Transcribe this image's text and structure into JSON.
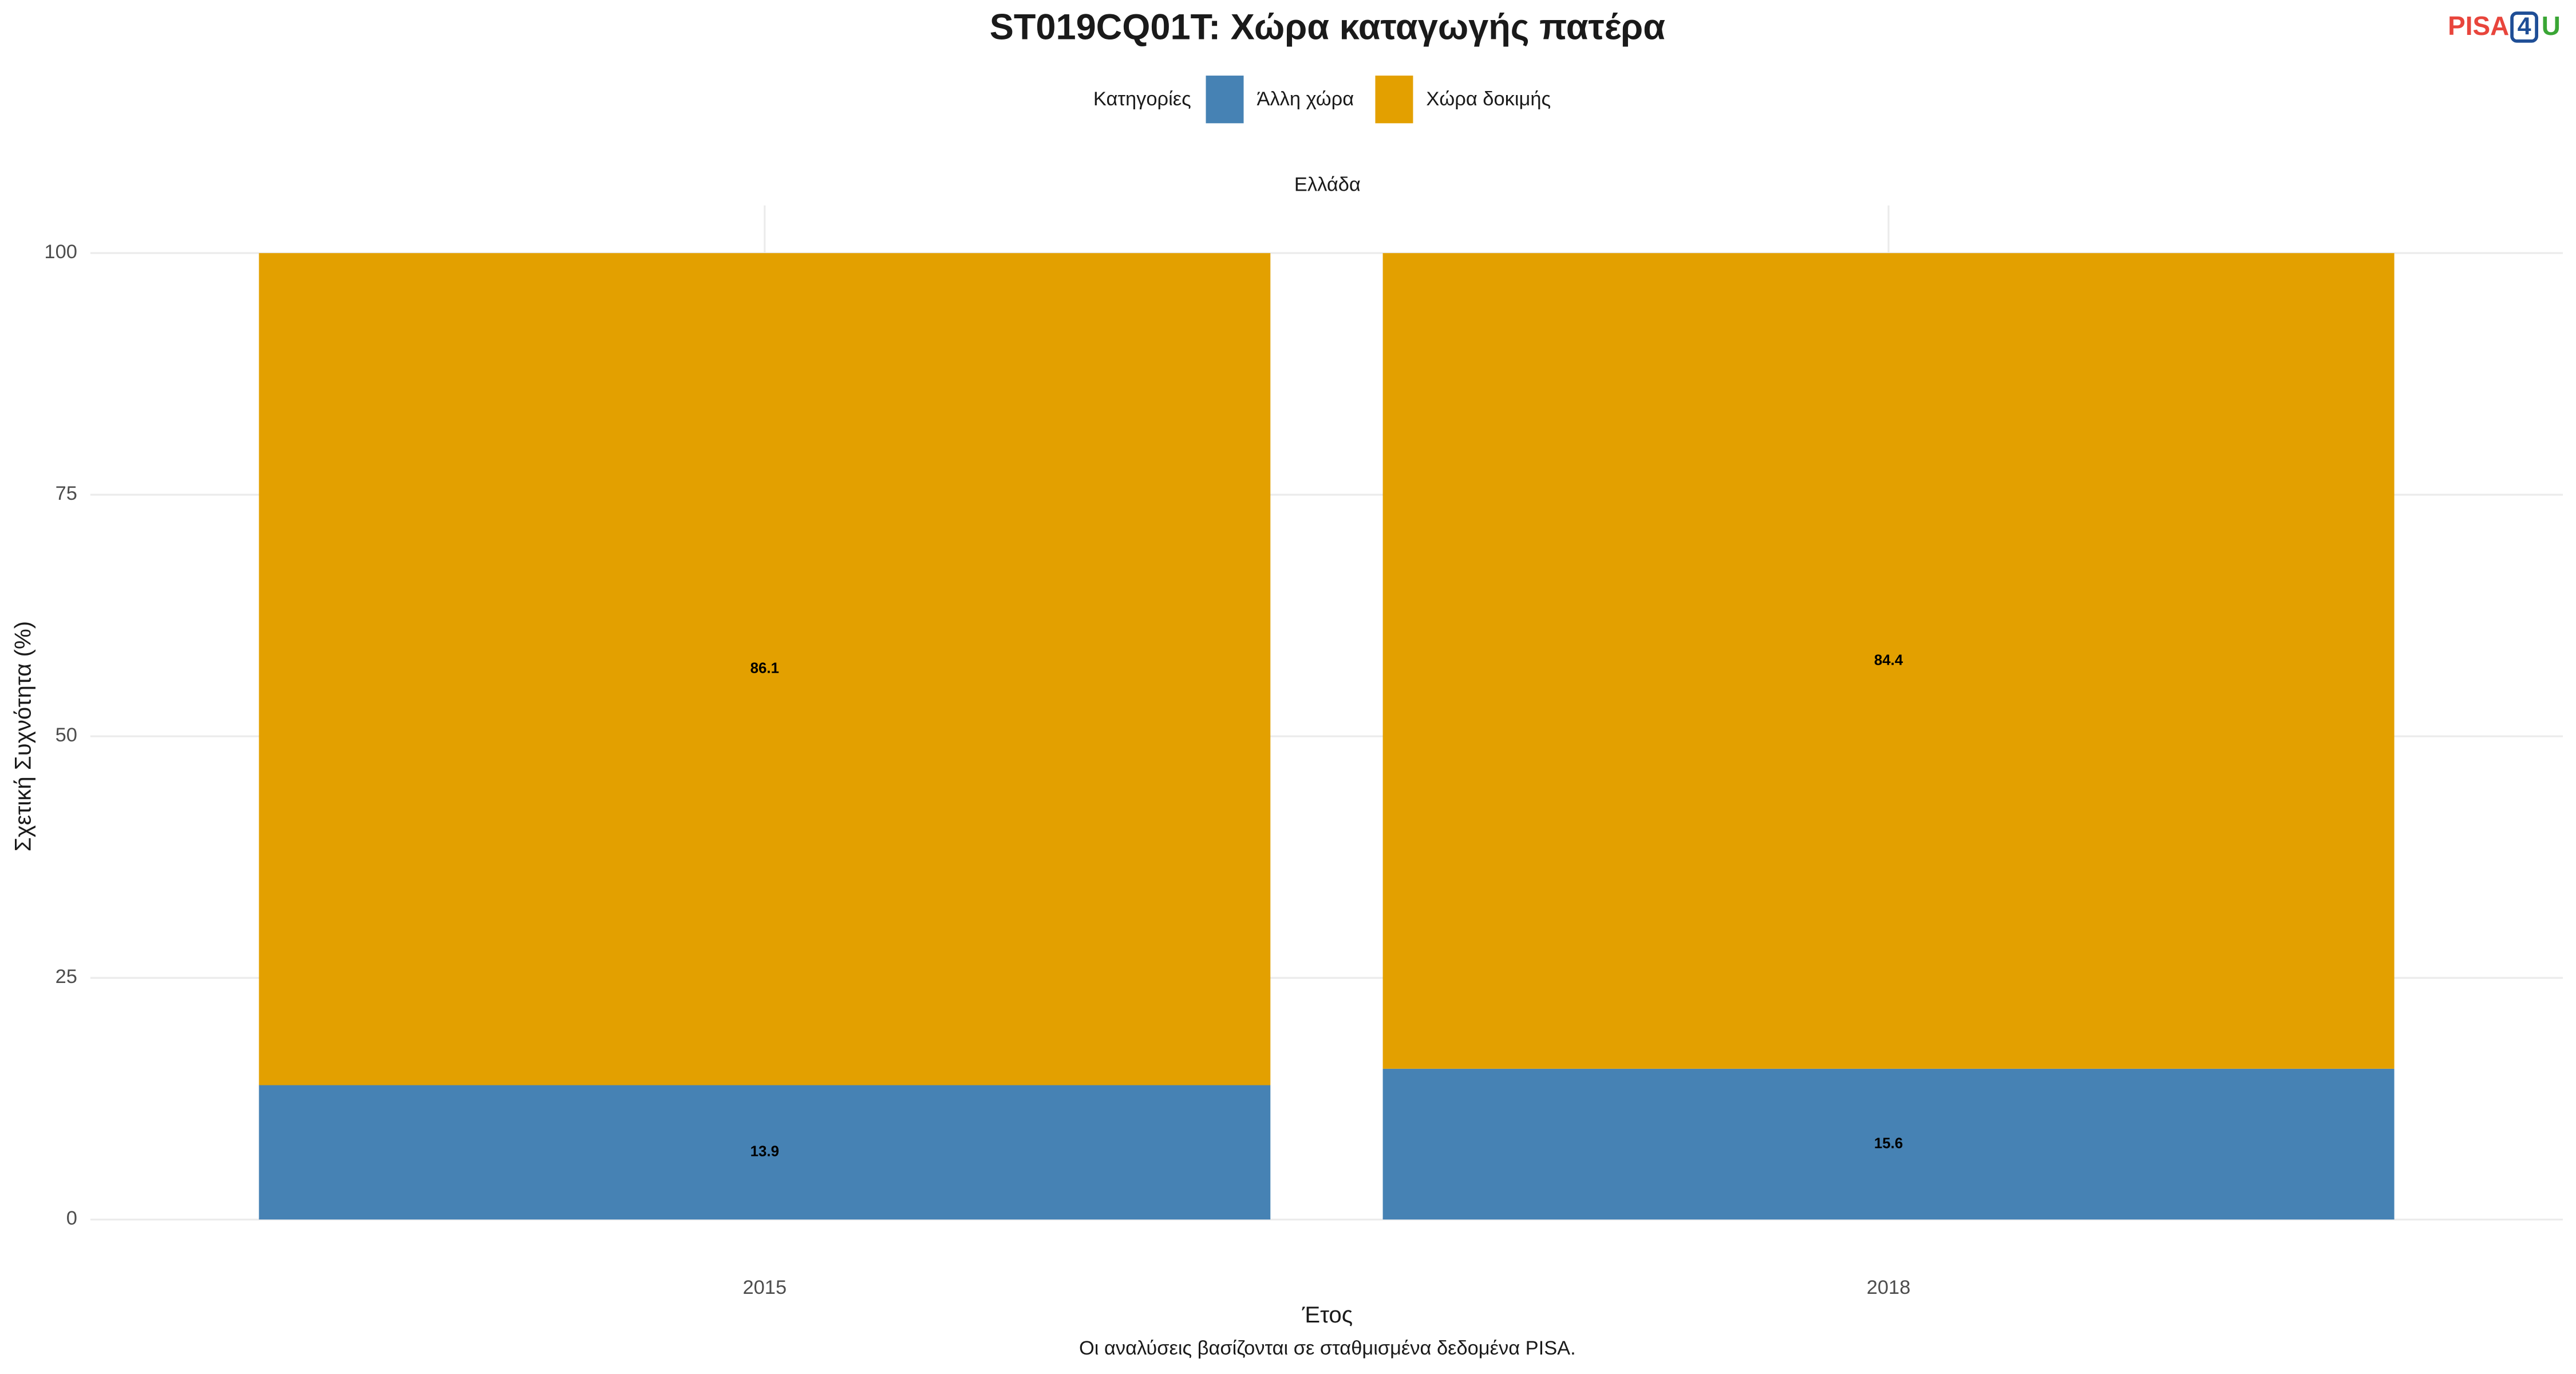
{
  "chart_data": {
    "type": "stacked_bar",
    "title": "ST019CQ01T: Χώρα καταγωγής πατέρα",
    "logo": [
      "PISA",
      "4",
      "U"
    ],
    "legend_title": "Κατηγορίες",
    "facet_label": "Ελλάδα",
    "categories": [
      "2015",
      "2018"
    ],
    "series": [
      {
        "name": "Άλλη χώρα",
        "color": "#4682b4",
        "values": [
          13.9,
          15.6
        ]
      },
      {
        "name": "Χώρα δοκιμής",
        "color": "#e3a000",
        "values": [
          86.1,
          84.4
        ]
      }
    ],
    "ylim": [
      0,
      100
    ],
    "yticks": [
      0,
      25,
      50,
      75,
      100
    ],
    "grid": true,
    "legend_position": "top",
    "x_label": "Έτος",
    "y_label": "Σχετική Συχνότητα (%)",
    "caption": "Οι αναλύσεις βασίζονται σε σταθμισμένα δεδομένα PISA."
  }
}
